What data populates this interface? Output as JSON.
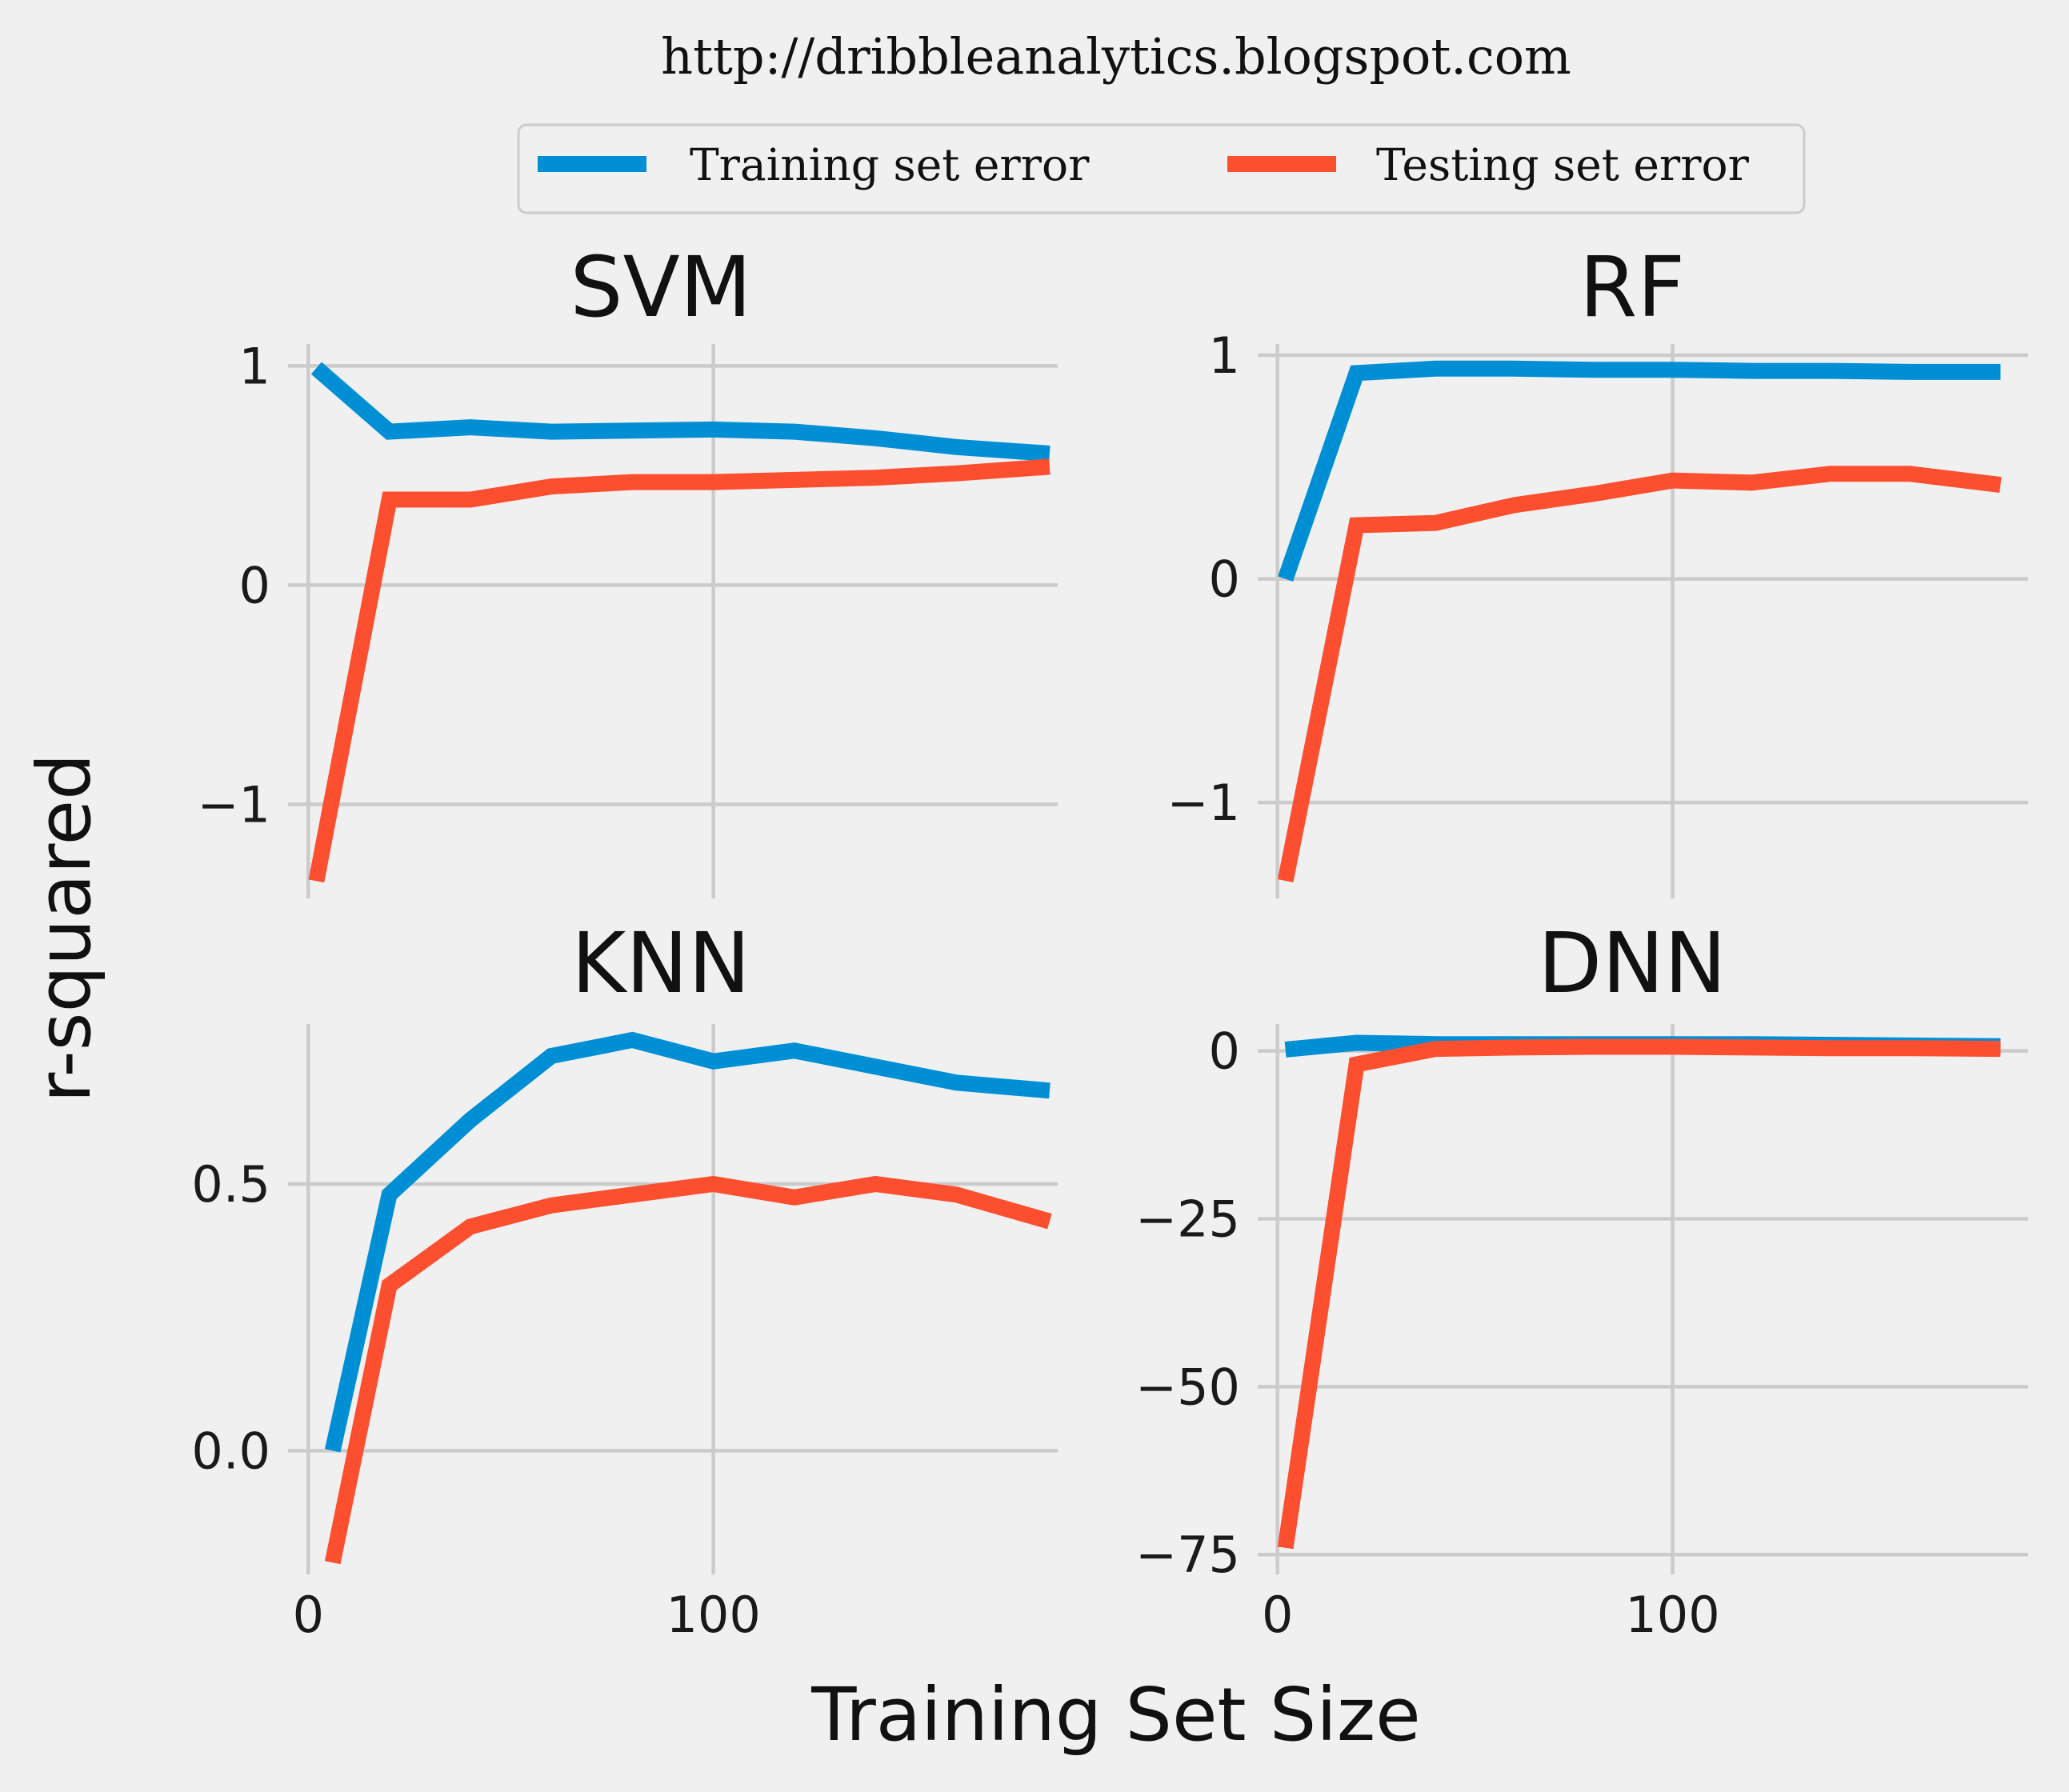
{
  "header": {
    "text": "http://dribbleanalytics.blogspot.com"
  },
  "legend": {
    "items": [
      {
        "label": "Training set error",
        "color": "#008fd5"
      },
      {
        "label": "Testing set error",
        "color": "#fc4f30"
      }
    ]
  },
  "axes": {
    "xlabel": "Training Set Size",
    "ylabel": "r-squared"
  },
  "chart_data": [
    {
      "type": "line",
      "title": "SVM",
      "xlim": [
        -5,
        185
      ],
      "ylim": [
        -1.4,
        1.1
      ],
      "xticks": [
        0,
        100
      ],
      "xticklabels": [
        "",
        ""
      ],
      "yticks": [
        1,
        0,
        -1
      ],
      "yticklabels": [
        "1",
        "0",
        "−1"
      ],
      "x": [
        2,
        20,
        40,
        60,
        80,
        100,
        120,
        140,
        160,
        183
      ],
      "series": [
        {
          "name": "Training set error",
          "color": "#008fd5",
          "values": [
            0.99,
            0.7,
            0.72,
            0.7,
            0.705,
            0.71,
            0.7,
            0.67,
            0.63,
            0.6
          ]
        },
        {
          "name": "Testing set error",
          "color": "#fc4f30",
          "values": [
            -1.35,
            0.39,
            0.39,
            0.45,
            0.47,
            0.47,
            0.48,
            0.49,
            0.51,
            0.54
          ]
        }
      ]
    },
    {
      "type": "line",
      "title": "RF",
      "xlim": [
        -5,
        190
      ],
      "ylim": [
        -1.4,
        1.05
      ],
      "xticks": [
        0,
        100
      ],
      "xticklabels": [
        "",
        ""
      ],
      "yticks": [
        1,
        0,
        -1
      ],
      "yticklabels": [
        "1",
        "0",
        "−1"
      ],
      "x": [
        2,
        20,
        40,
        60,
        80,
        100,
        120,
        140,
        160,
        183
      ],
      "series": [
        {
          "name": "Training set error",
          "color": "#008fd5",
          "values": [
            0.0,
            0.92,
            0.94,
            0.94,
            0.935,
            0.935,
            0.93,
            0.93,
            0.925,
            0.925
          ]
        },
        {
          "name": "Testing set error",
          "color": "#fc4f30",
          "values": [
            -1.35,
            0.24,
            0.25,
            0.33,
            0.38,
            0.44,
            0.43,
            0.47,
            0.47,
            0.42
          ]
        }
      ]
    },
    {
      "type": "line",
      "title": "KNN",
      "xlim": [
        -5,
        185
      ],
      "ylim": [
        -0.22,
        0.8
      ],
      "xticks": [
        0,
        100
      ],
      "xticklabels": [
        "0",
        "100"
      ],
      "yticks": [
        0.5,
        0.0
      ],
      "yticklabels": [
        "0.5",
        "0.0"
      ],
      "series": [
        {
          "name": "Training set error",
          "color": "#008fd5",
          "x": [
            6,
            20,
            40,
            60,
            80,
            100,
            120,
            140,
            160,
            183
          ],
          "values": [
            0.0,
            0.48,
            0.62,
            0.74,
            0.77,
            0.73,
            0.75,
            0.72,
            0.69,
            0.675
          ]
        },
        {
          "name": "Testing set error",
          "color": "#fc4f30",
          "x": [
            6,
            20,
            40,
            60,
            80,
            100,
            120,
            140,
            160,
            183
          ],
          "values": [
            -0.21,
            0.31,
            0.42,
            0.46,
            0.48,
            0.5,
            0.475,
            0.5,
            0.48,
            0.43
          ]
        }
      ]
    },
    {
      "type": "line",
      "title": "DNN",
      "xlim": [
        -5,
        190
      ],
      "ylim": [
        -77,
        4
      ],
      "xticks": [
        0,
        100
      ],
      "xticklabels": [
        "0",
        "100"
      ],
      "yticks": [
        0,
        -25,
        -50,
        -75
      ],
      "yticklabels": [
        "0",
        "−25",
        "−50",
        "−75"
      ],
      "x": [
        2,
        20,
        40,
        60,
        80,
        100,
        120,
        140,
        160,
        183
      ],
      "series": [
        {
          "name": "Training set error",
          "color": "#008fd5",
          "values": [
            0.2,
            1.2,
            1.0,
            1.0,
            1.0,
            1.0,
            1.0,
            0.9,
            0.8,
            0.7
          ]
        },
        {
          "name": "Testing set error",
          "color": "#fc4f30",
          "values": [
            -74,
            -2,
            0.3,
            0.5,
            0.6,
            0.6,
            0.5,
            0.4,
            0.4,
            0.3
          ]
        }
      ]
    }
  ]
}
